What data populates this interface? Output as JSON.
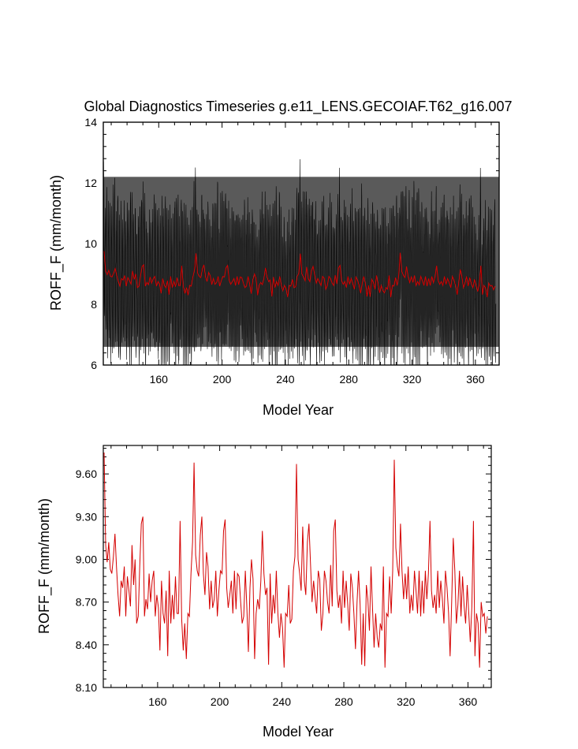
{
  "chart_data": [
    {
      "type": "line",
      "title": "Global Diagnostics Timeseries g.e11_LENS.GECOIAF.T62_g16.007",
      "xlabel": "Model Year",
      "ylabel": "ROFF_F (mm/month)",
      "xlim": [
        125,
        375
      ],
      "ylim": [
        6,
        14
      ],
      "xticks": [
        160,
        200,
        240,
        280,
        320,
        360
      ],
      "xtick_labels": [
        "160",
        "200",
        "240",
        "280",
        "320",
        "360"
      ],
      "yticks": [
        6,
        8,
        10,
        12,
        14
      ],
      "ytick_labels": [
        "6",
        "8",
        "10",
        "12",
        "14"
      ],
      "series": [
        {
          "description_color": "#000000",
          "kind": "monthly",
          "start_year": 125,
          "years": 250,
          "seasonal_amplitude": 2.3,
          "mean": 8.9
        },
        {
          "color": "#d40000",
          "kind": "annual mean",
          "start_year": 125,
          "values": [
            9.75,
            9.1,
            8.98,
            9.12,
            8.93,
            8.9,
            9.02,
            9.18,
            8.95,
            8.75,
            8.6,
            8.85,
            8.8,
            8.95,
            8.6,
            8.88,
            8.78,
            8.67,
            9.1,
            8.82,
            9.0,
            8.55,
            8.6,
            8.95,
            9.25,
            9.3,
            8.6,
            8.72,
            8.65,
            8.9,
            8.7,
            8.85,
            8.92,
            8.6,
            8.75,
            8.66,
            8.36,
            8.85,
            8.62,
            8.55,
            8.78,
            8.32,
            8.92,
            8.55,
            8.75,
            8.58,
            8.88,
            8.62,
            8.62,
            9.27,
            8.58,
            8.36,
            8.55,
            8.3,
            8.62,
            8.6,
            8.9,
            9.12,
            9.68,
            9.03,
            8.92,
            8.88,
            9.17,
            9.3,
            8.9,
            8.75,
            9.05,
            8.95,
            8.65,
            8.85,
            8.66,
            8.72,
            8.92,
            8.6,
            8.78,
            8.92,
            8.9,
            9.2,
            9.28,
            8.8,
            8.66,
            8.75,
            8.85,
            8.62,
            8.92,
            8.65,
            8.9,
            8.88,
            8.7,
            8.55,
            8.6,
            8.92,
            8.67,
            8.35,
            8.8,
            9.0,
            8.86,
            8.3,
            8.62,
            8.72,
            8.65,
            8.85,
            9.2,
            8.9,
            8.75,
            8.8,
            8.26,
            8.9,
            8.55,
            8.75,
            8.62,
            8.92,
            8.62,
            8.45,
            8.62,
            8.52,
            8.24,
            8.62,
            8.6,
            8.82,
            8.55,
            8.58,
            8.92,
            9.02,
            9.67,
            9.0,
            8.9,
            8.78,
            9.23,
            8.85,
            8.75,
            9.12,
            9.25,
            8.98,
            8.7,
            8.85,
            8.73,
            8.62,
            8.92,
            8.86,
            8.5,
            8.62,
            8.92,
            8.85,
            8.7,
            8.62,
            8.96,
            8.67,
            9.2,
            9.28,
            8.78,
            8.66,
            8.75,
            8.55,
            8.92,
            8.66,
            8.85,
            8.68,
            8.5,
            8.9,
            8.8,
            8.62,
            8.37,
            8.7,
            8.92,
            8.68,
            8.26,
            8.62,
            8.25,
            8.82,
            8.72,
            8.5,
            8.95,
            8.66,
            8.38,
            8.62,
            8.45,
            8.38,
            8.55,
            8.5,
            8.95,
            8.24,
            8.62,
            8.6,
            8.88,
            8.62,
            8.92,
            9.7,
            9.08,
            8.95,
            8.88,
            9.25,
            8.92,
            8.72,
            8.9,
            8.72,
            8.95,
            8.62,
            8.75,
            8.64,
            8.92,
            8.78,
            8.62,
            8.92,
            8.6,
            8.85,
            8.62,
            8.92,
            8.72,
            8.9,
            9.27,
            8.78,
            8.66,
            8.75,
            8.62,
            8.92,
            8.66,
            8.85,
            8.72,
            8.55,
            8.92,
            8.8,
            8.62,
            8.32,
            8.7,
            9.15,
            8.92,
            8.55,
            8.68,
            8.92,
            8.6,
            8.88,
            8.67,
            8.55,
            8.82,
            8.62,
            8.42,
            8.67,
            9.27,
            8.32,
            8.62,
            8.55,
            8.24,
            8.7,
            8.6,
            8.62,
            8.48,
            8.6
          ]
        }
      ]
    },
    {
      "type": "line",
      "title": "",
      "xlabel": "Model Year",
      "ylabel": "ROFF_F (mm/month)",
      "xlim": [
        125,
        375
      ],
      "ylim": [
        8.1,
        9.8
      ],
      "xticks": [
        160,
        200,
        240,
        280,
        320,
        360
      ],
      "xtick_labels": [
        "160",
        "200",
        "240",
        "280",
        "320",
        "360"
      ],
      "yticks": [
        8.1,
        8.4,
        8.7,
        9.0,
        9.3,
        9.6
      ],
      "ytick_labels": [
        "8.10",
        "8.40",
        "8.70",
        "9.00",
        "9.30",
        "9.60"
      ],
      "series": [
        {
          "color": "#d40000",
          "kind": "annual mean",
          "start_year": 125,
          "use_values_of": "chart_data.0.series.1.values"
        }
      ]
    }
  ]
}
